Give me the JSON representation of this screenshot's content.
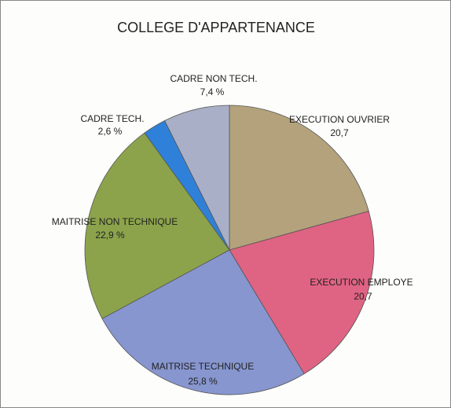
{
  "chart_data": {
    "type": "pie",
    "title": "COLLEGE D'APPARTENANCE",
    "categories": [
      "EXECUTION OUVRIER",
      "EXECUTION EMPLOYE",
      "MAITRISE TECHNIQUE",
      "MAITRISE NON TECHNIQUE",
      "CADRE TECH.",
      "CADRE NON TECH."
    ],
    "values": [
      20.7,
      20.7,
      25.8,
      22.9,
      2.6,
      7.4
    ],
    "value_labels": [
      "20,7",
      "20,7",
      "25,8 %",
      "22,9 %",
      "2,6 %",
      "7,4 %"
    ],
    "colors": [
      "#b4a27c",
      "#df6382",
      "#8796cf",
      "#8ca34b",
      "#2f80d8",
      "#a9afc6"
    ]
  }
}
